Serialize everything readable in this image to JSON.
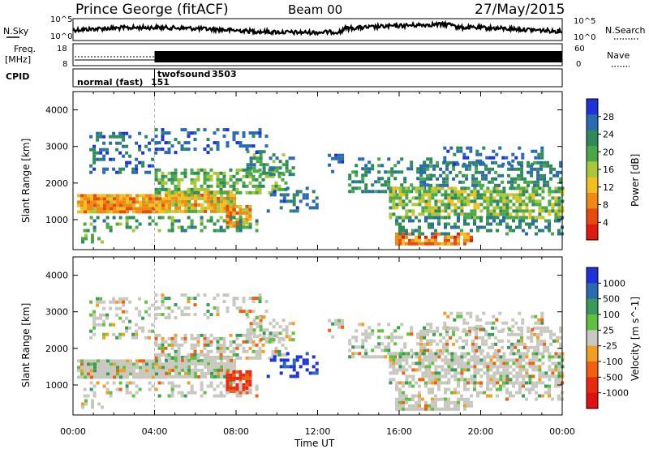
{
  "header": {
    "station": "Prince George (fitACF)",
    "beam": "Beam 00",
    "date": "27/May/2015"
  },
  "side_labels": {
    "nsky": "N.Sky",
    "nsearch": "N.Search",
    "freq_line1": "Freq.",
    "freq_line2": "[MHz]",
    "nave": "Nave",
    "cpid": "CPID"
  },
  "noise_panel": {
    "left_ticks": [
      "10^5",
      "10^0"
    ],
    "right_ticks": [
      "10^5",
      "10^0"
    ]
  },
  "freq_panel": {
    "left_ticks": [
      "18",
      "8"
    ],
    "right_ticks": [
      "60",
      "0"
    ]
  },
  "cpid_panel": {
    "modes": [
      {
        "label": "normal (fast)",
        "id": "151",
        "start": "00:00"
      },
      {
        "label": "twofsound",
        "id": "3503",
        "start": "04:00"
      }
    ]
  },
  "colors": {
    "power_scale": [
      "#1e32d8",
      "#2a6ab0",
      "#2f8a5a",
      "#4aa84a",
      "#a8c83a",
      "#f0c020",
      "#f08a14",
      "#e84a10",
      "#e01a10"
    ],
    "velocity_scale": [
      "#1e32d8",
      "#2a6ab0",
      "#3a9a5a",
      "#60c040",
      "#c8c8c0",
      "#f0a020",
      "#f06010",
      "#e82a10",
      "#e01010"
    ]
  },
  "chart_data": [
    {
      "type": "heatmap",
      "quantity": "Power",
      "xlabel": "",
      "ylabel": "Slant Range [km]",
      "xlim_hours": [
        0,
        24
      ],
      "ylim": [
        180,
        4500
      ],
      "yticks": [
        "1000",
        "2000",
        "3000",
        "4000"
      ],
      "colorbar": {
        "label": "Power [dB]",
        "ticks": [
          "4",
          "8",
          "12",
          "16",
          "20",
          "24",
          "28"
        ],
        "range": [
          0,
          30
        ]
      }
    },
    {
      "type": "heatmap",
      "quantity": "Velocity",
      "xlabel": "Time UT",
      "ylabel": "Slant Range [km]",
      "xlim_hours": [
        0,
        24
      ],
      "ylim": [
        180,
        4500
      ],
      "xticks": [
        "00:00",
        "04:00",
        "08:00",
        "12:00",
        "16:00",
        "20:00",
        "00:00"
      ],
      "yticks": [
        "1000",
        "2000",
        "3000",
        "4000"
      ],
      "colorbar": {
        "label": "Velocity [m s^-1]",
        "ticks": [
          "1000",
          "500",
          "100",
          "25",
          "-25",
          "-100",
          "-500",
          "-1000"
        ],
        "range": [
          -1000,
          1000
        ]
      }
    }
  ]
}
